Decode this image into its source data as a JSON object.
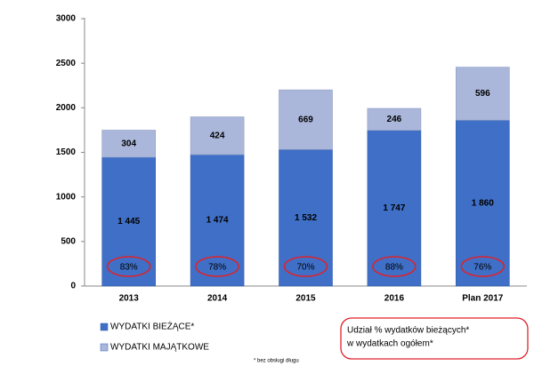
{
  "chart_data": {
    "type": "stacked_bar",
    "categories": [
      "2013",
      "2014",
      "2015",
      "2016",
      "Plan 2017"
    ],
    "series": [
      {
        "name": "WYDATKI BIEŻĄCE*",
        "color": "#3f6fc6",
        "values": [
          1445,
          1474,
          1532,
          1747,
          1860
        ],
        "value_labels": [
          "1 445",
          "1 474",
          "1 532",
          "1 747",
          "1 860"
        ]
      },
      {
        "name": "WYDATKI MAJĄTKOWE",
        "color": "#aab7da",
        "values": [
          304,
          424,
          669,
          246,
          596
        ]
      }
    ],
    "share": {
      "values": [
        83,
        78,
        70,
        88,
        76
      ],
      "value_labels": [
        "83%",
        "78%",
        "70%",
        "88%",
        "76%"
      ],
      "color": "#e0222a"
    },
    "share_note": [
      "Udział % wydatków bieżących*",
      "w wydatkach ogółem*"
    ],
    "footnote": "* bez obsługi długu",
    "ylim": [
      0,
      3000
    ],
    "yticks": [
      0,
      500,
      1000,
      1500,
      2000,
      2500,
      3000
    ],
    "grid": false
  }
}
